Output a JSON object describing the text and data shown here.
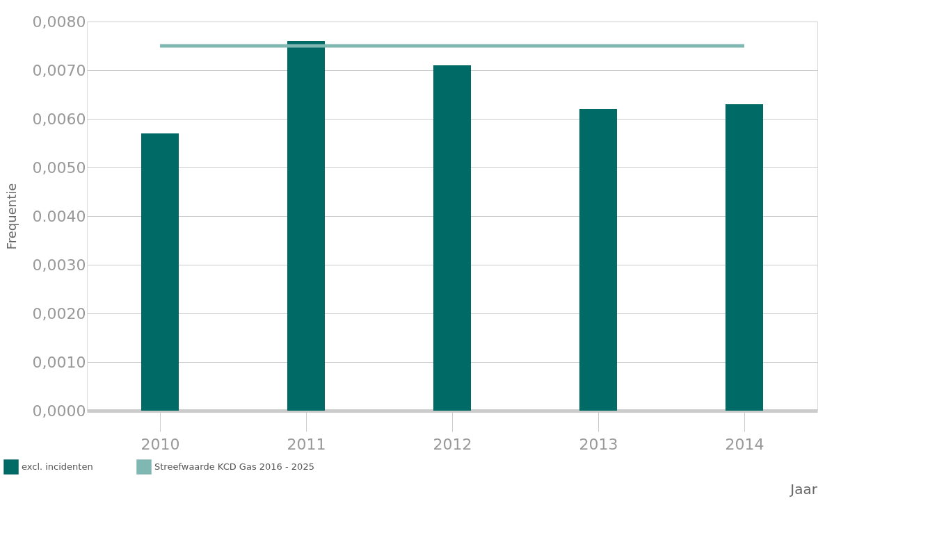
{
  "chart_data": {
    "type": "bar",
    "xlabel": "Jaar",
    "ylabel": "Frequentie",
    "categories": [
      "2010",
      "2011",
      "2012",
      "2013",
      "2014"
    ],
    "series": [
      {
        "name": "excl. incidenten",
        "color": "#006a66",
        "values": [
          0.0057,
          0.0076,
          0.0071,
          0.0062,
          0.0063
        ]
      },
      {
        "name": "Streefwaarde KCD Gas 2016 - 2025",
        "type": "line",
        "color": "#7fb7b2",
        "values": [
          0.0075,
          0.0075,
          0.0075,
          0.0075,
          0.0075
        ]
      }
    ],
    "ylim": [
      0,
      0.008
    ],
    "yticks": [
      {
        "value": 0,
        "label": "0,0000"
      },
      {
        "value": 0.001,
        "label": "0,0010"
      },
      {
        "value": 0.002,
        "label": "0,0020"
      },
      {
        "value": 0.003,
        "label": "0,0030"
      },
      {
        "value": 0.004,
        "label": "0.0040"
      },
      {
        "value": 0.005,
        "label": "0,0050"
      },
      {
        "value": 0.006,
        "label": "0,0060"
      },
      {
        "value": 0.007,
        "label": "0,0070"
      },
      {
        "value": 0.008,
        "label": "0,0080"
      }
    ],
    "grid": "y",
    "legend": "bottom left"
  }
}
